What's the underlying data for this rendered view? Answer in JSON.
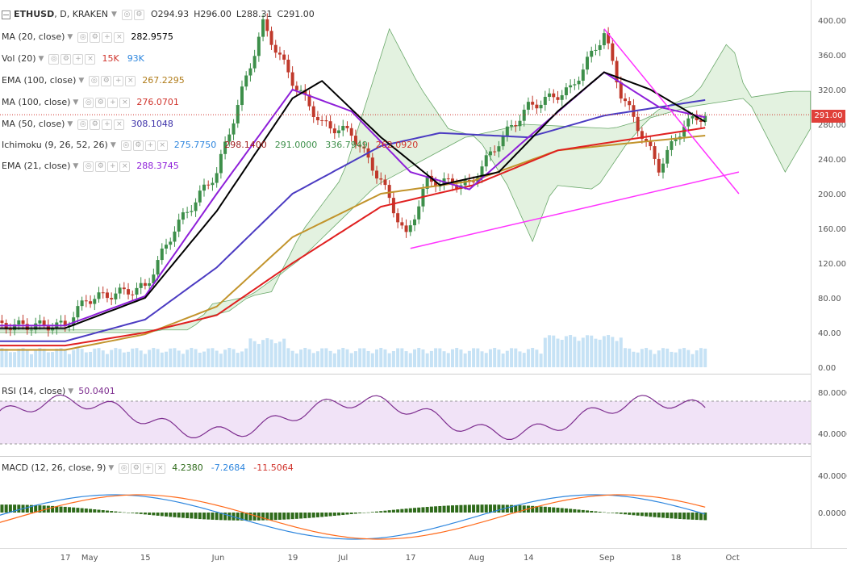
{
  "symbol": {
    "name": "ETHUSD",
    "interval": "D",
    "exchange": "KRAKEN",
    "open_label": "O",
    "open": "294.93",
    "high_label": "H",
    "high": "296.00",
    "low_label": "L",
    "low": "288.31",
    "close_label": "C",
    "close": "291.00"
  },
  "colors": {
    "up": "#3d8f4a",
    "down": "#c0392b",
    "ma20": "#000000",
    "ema100": "#c2942c",
    "ma100": "#e02020",
    "ma50": "#4b3bc2",
    "ema21": "#8e1fd9",
    "trend": "#ff33ff",
    "rsi": "#7d2d8f",
    "macd": "#2e86de",
    "signal": "#ff6a1a",
    "hist": "#2f6b1b",
    "cloud_bull": "#d9eed6",
    "cloud_bear": "#f6d4d4"
  },
  "indicators": [
    {
      "name": "MA (20, close)",
      "values": [
        {
          "v": "282.9575",
          "color": "#000000"
        }
      ]
    },
    {
      "name": "Vol (20)",
      "values": [
        {
          "v": "15K",
          "color": "#d0342c"
        },
        {
          "v": "93K",
          "color": "#2e86de"
        }
      ]
    },
    {
      "name": "EMA (100, close)",
      "values": [
        {
          "v": "267.2295",
          "color": "#b07c1a"
        }
      ]
    },
    {
      "name": "MA (100, close)",
      "values": [
        {
          "v": "276.0701",
          "color": "#d0342c"
        }
      ]
    },
    {
      "name": "MA (50, close)",
      "values": [
        {
          "v": "308.1048",
          "color": "#3b2fa8"
        }
      ]
    },
    {
      "name": "Ichimoku (9, 26, 52, 26)",
      "values": [
        {
          "v": "275.7750",
          "color": "#2e86de"
        },
        {
          "v": "298.1400",
          "color": "#a02020"
        },
        {
          "v": "291.0000",
          "color": "#3d8f4a"
        },
        {
          "v": "336.7949",
          "color": "#3d8f4a"
        },
        {
          "v": "262.0920",
          "color": "#d0342c"
        }
      ]
    },
    {
      "name": "EMA (21, close)",
      "values": [
        {
          "v": "288.3745",
          "color": "#8e1fd9"
        }
      ]
    }
  ],
  "rsi_legend": {
    "name": "RSI (14, close)",
    "value": "50.0401"
  },
  "macd_legend": {
    "name": "MACD (12, 26, close, 9)",
    "values": [
      {
        "v": "4.2380",
        "color": "#2f6b1b"
      },
      {
        "v": "-7.2684",
        "color": "#2e86de"
      },
      {
        "v": "-11.5064",
        "color": "#d0342c"
      }
    ]
  },
  "price_tag": "291.00",
  "chart_data": [
    {
      "type": "candlestick",
      "title": "ETHUSD, D, KRAKEN",
      "x_ticks": [
        "17",
        "May",
        "15",
        "Jun",
        "19",
        "Jul",
        "17",
        "Aug",
        "14",
        "Sep",
        "18",
        "Oct"
      ],
      "y_ticks": [
        "0.00",
        "40.00",
        "80.00",
        "120.00",
        "160.00",
        "200.00",
        "240.00",
        "280.00",
        "320.00",
        "360.00",
        "400.00"
      ],
      "ylim": [
        0,
        410
      ],
      "current_price": 291.0,
      "trendline_support": {
        "from": {
          "date": "Jul 17",
          "value": 137
        },
        "to": {
          "date": "Oct 3",
          "value": 225
        }
      },
      "trendline_resistance": {
        "from": {
          "date": "Sep 1",
          "value": 390
        },
        "to": {
          "date": "Oct 3",
          "value": 200
        }
      },
      "close_path": [
        {
          "date": "Apr 17",
          "value": 48
        },
        {
          "date": "May 1",
          "value": 78
        },
        {
          "date": "May 15",
          "value": 92
        },
        {
          "date": "May 22",
          "value": 160
        },
        {
          "date": "Jun 1",
          "value": 225
        },
        {
          "date": "Jun 12",
          "value": 395
        },
        {
          "date": "Jun 19",
          "value": 330
        },
        {
          "date": "Jun 26",
          "value": 280
        },
        {
          "date": "Jul 3",
          "value": 270
        },
        {
          "date": "Jul 10",
          "value": 215
        },
        {
          "date": "Jul 16",
          "value": 150
        },
        {
          "date": "Jul 21",
          "value": 215
        },
        {
          "date": "Jul 31",
          "value": 210
        },
        {
          "date": "Aug 7",
          "value": 260
        },
        {
          "date": "Aug 14",
          "value": 300
        },
        {
          "date": "Aug 24",
          "value": 320
        },
        {
          "date": "Sep 1",
          "value": 385
        },
        {
          "date": "Sep 5",
          "value": 315
        },
        {
          "date": "Sep 14",
          "value": 230
        },
        {
          "date": "Sep 20",
          "value": 280
        },
        {
          "date": "Sep 25",
          "value": 291
        }
      ],
      "ma20_path": [
        {
          "date": "Apr 17",
          "value": 45
        },
        {
          "date": "May 15",
          "value": 80
        },
        {
          "date": "Jun 1",
          "value": 180
        },
        {
          "date": "Jun 19",
          "value": 310
        },
        {
          "date": "Jun 26",
          "value": 330
        },
        {
          "date": "Jul 10",
          "value": 265
        },
        {
          "date": "Jul 24",
          "value": 210
        },
        {
          "date": "Aug 7",
          "value": 225
        },
        {
          "date": "Aug 21",
          "value": 295
        },
        {
          "date": "Sep 1",
          "value": 340
        },
        {
          "date": "Sep 12",
          "value": 320
        },
        {
          "date": "Sep 25",
          "value": 283
        }
      ],
      "ema21_path": [
        {
          "date": "Apr 17",
          "value": 48
        },
        {
          "date": "May 15",
          "value": 82
        },
        {
          "date": "Jun 1",
          "value": 200
        },
        {
          "date": "Jun 19",
          "value": 320
        },
        {
          "date": "Jul 3",
          "value": 295
        },
        {
          "date": "Jul 17",
          "value": 225
        },
        {
          "date": "Jul 31",
          "value": 205
        },
        {
          "date": "Aug 14",
          "value": 265
        },
        {
          "date": "Sep 1",
          "value": 340
        },
        {
          "date": "Sep 14",
          "value": 300
        },
        {
          "date": "Sep 25",
          "value": 288
        }
      ],
      "ma50_path": [
        {
          "date": "Apr 17",
          "value": 30
        },
        {
          "date": "May 15",
          "value": 55
        },
        {
          "date": "Jun 1",
          "value": 115
        },
        {
          "date": "Jun 19",
          "value": 200
        },
        {
          "date": "Jul 10",
          "value": 255
        },
        {
          "date": "Jul 24",
          "value": 270
        },
        {
          "date": "Aug 14",
          "value": 265
        },
        {
          "date": "Sep 1",
          "value": 290
        },
        {
          "date": "Sep 25",
          "value": 308
        }
      ],
      "ma100_path": [
        {
          "date": "Apr 17",
          "value": 25
        },
        {
          "date": "May 15",
          "value": 40
        },
        {
          "date": "Jun 1",
          "value": 60
        },
        {
          "date": "Jun 19",
          "value": 120
        },
        {
          "date": "Jul 10",
          "value": 185
        },
        {
          "date": "Aug 1",
          "value": 210
        },
        {
          "date": "Aug 21",
          "value": 250
        },
        {
          "date": "Sep 25",
          "value": 276
        }
      ],
      "ema100_path": [
        {
          "date": "Apr 17",
          "value": 20
        },
        {
          "date": "May 15",
          "value": 38
        },
        {
          "date": "Jun 1",
          "value": 70
        },
        {
          "date": "Jun 19",
          "value": 150
        },
        {
          "date": "Jul 10",
          "value": 200
        },
        {
          "date": "Aug 1",
          "value": 215
        },
        {
          "date": "Aug 21",
          "value": 250
        },
        {
          "date": "Sep 25",
          "value": 267
        }
      ]
    },
    {
      "type": "line",
      "title": "RSI (14, close)",
      "y_ticks": [
        "40.0000",
        "80.0000"
      ],
      "band": [
        30,
        70
      ],
      "current": 50.04
    },
    {
      "type": "line",
      "title": "MACD (12, 26, close, 9)",
      "y_ticks": [
        "0.0000",
        "40.0000"
      ],
      "current": {
        "hist": 4.238,
        "macd": -7.2684,
        "signal": -11.5064
      }
    }
  ]
}
